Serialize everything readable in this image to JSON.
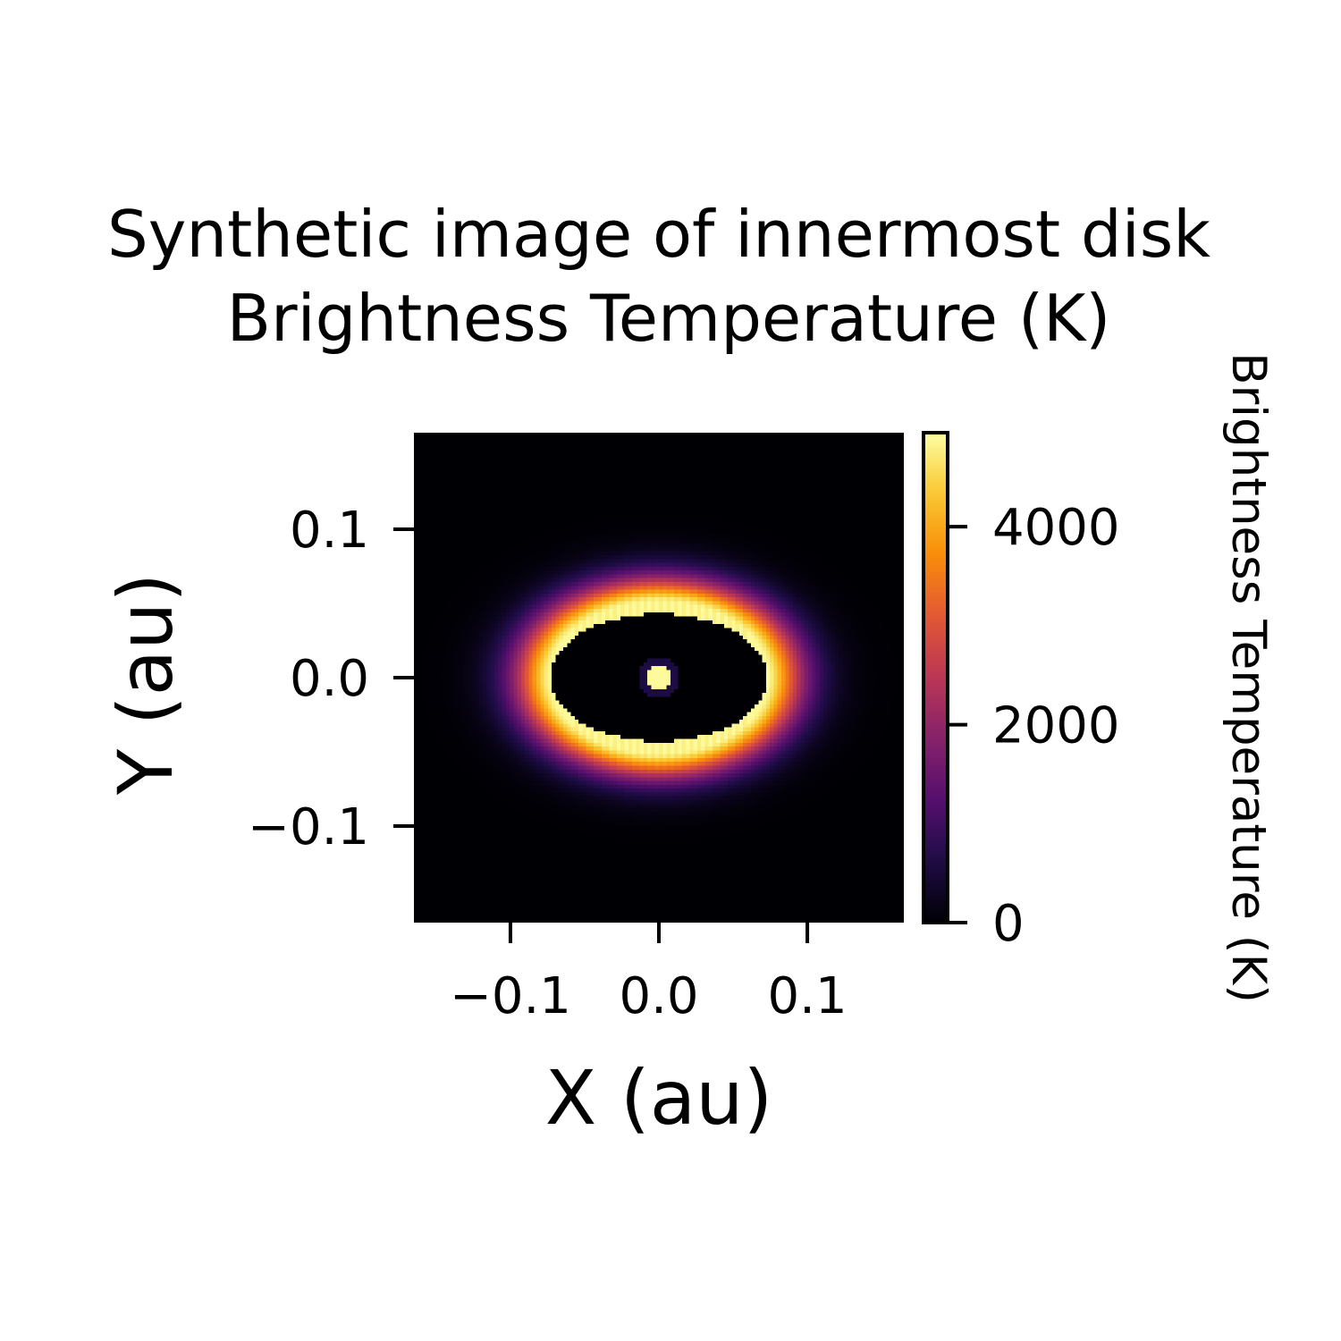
{
  "chart_data": {
    "type": "heatmap",
    "title": "Synthetic image of innermost disk",
    "subtitle": "Brightness Temperature (K)",
    "xlabel": "X (au)",
    "ylabel": "Y (au)",
    "xlim": [
      -0.165,
      0.165
    ],
    "ylim": [
      -0.165,
      0.165
    ],
    "xticks": [
      -0.1,
      0.0,
      0.1
    ],
    "yticks": [
      -0.1,
      0.0,
      0.1
    ],
    "xtick_labels": [
      "−0.1",
      "0.0",
      "0.1"
    ],
    "ytick_labels": [
      "−0.1",
      "0.0",
      "0.1"
    ],
    "colormap": "inferno",
    "colorbar": {
      "label": "Brightness Temperature (K)",
      "range": [
        0,
        4950
      ],
      "ticks": [
        0,
        2000,
        4000
      ],
      "tick_labels": [
        "0",
        "2000",
        "4000"
      ]
    },
    "grid_cells": 128,
    "features": {
      "star": {
        "center": [
          0.0,
          0.0
        ],
        "radius_au": 0.009,
        "temperature_K": 4900
      },
      "inner_rim": {
        "semi_major_au": 0.073,
        "semi_minor_au": 0.043,
        "peak_temperature_K": 4900
      },
      "ring_falloff_scale_au": 0.026,
      "outer_extent_au": 0.125
    }
  }
}
